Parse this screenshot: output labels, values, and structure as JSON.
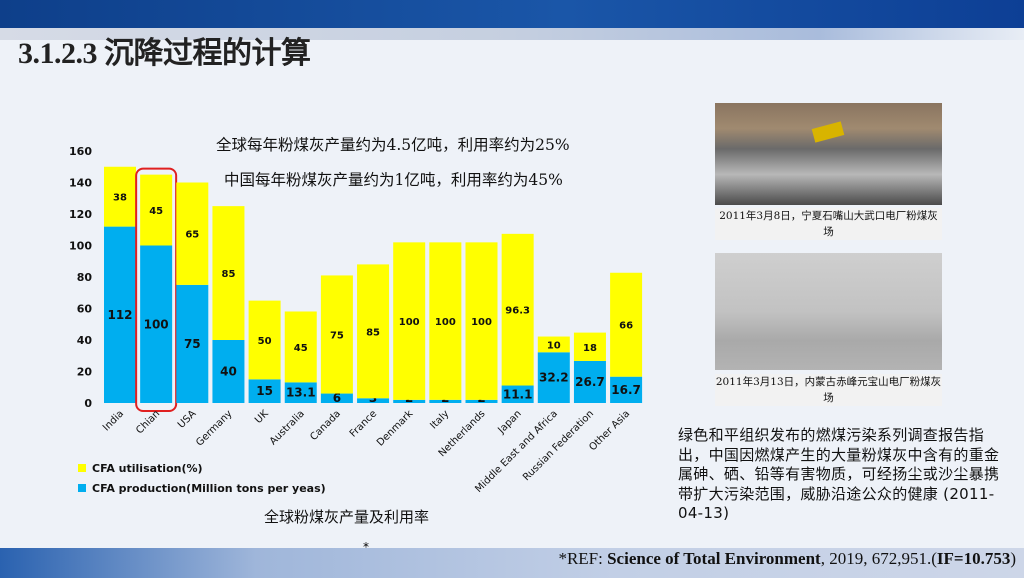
{
  "header": {
    "title": "3.1.2.3  沉降过程的计算"
  },
  "notes": [
    "全球每年粉煤灰产量约为4.5亿吨，利用率约为25%",
    "中国每年粉煤灰产量约为1亿吨，利用率约为45%"
  ],
  "chart_data": {
    "type": "bar",
    "stacked": true,
    "title": "全球粉煤灰产量及利用率",
    "categories": [
      "India",
      "Chian",
      "USA",
      "Germany",
      "UK",
      "Australia",
      "Canada",
      "France",
      "Denmark",
      "Italy",
      "Netherlands",
      "Japan",
      "Middle East and Africa",
      "Russian Federation",
      "Other Asia"
    ],
    "ylim": [
      0,
      160
    ],
    "yticks": [
      0,
      20,
      40,
      60,
      80,
      100,
      120,
      140,
      160
    ],
    "highlight": "Chian",
    "legend_position": "bottom-left",
    "series": [
      {
        "name": "CFA production(Million tons per yeas)",
        "color": "#00aeef",
        "values": [
          112,
          100,
          75,
          40,
          15,
          13.1,
          6,
          3,
          2,
          2,
          2,
          11.1,
          32.2,
          26.7,
          16.7
        ]
      },
      {
        "name": "CFA utilisation(%)",
        "color": "#ffff00",
        "values": [
          38,
          45,
          65,
          85,
          50,
          45,
          75,
          85,
          100,
          100,
          100,
          96.3,
          10,
          18,
          66
        ]
      }
    ]
  },
  "photos": [
    {
      "caption": "2011年3月8日，宁夏石嘴山大武口电厂粉煤灰场"
    },
    {
      "caption": "2011年3月13日，内蒙古赤峰元宝山电厂粉煤灰场"
    }
  ],
  "description": "绿色和平组织发布的燃煤污染系列调查报告指出，中国因燃煤产生的大量粉煤灰中含有的重金属砷、硒、铅等有害物质，可经扬尘或沙尘暴携带扩大污染范围，威胁沿途公众的健康 (2011-04-13)",
  "footer": {
    "star": "*",
    "ref_prefix": "*REF: ",
    "journal": "Science of Total Environment",
    "ref_mid": ", 2019, 672,951.(",
    "if": "IF=10.753",
    "ref_end": ")"
  }
}
